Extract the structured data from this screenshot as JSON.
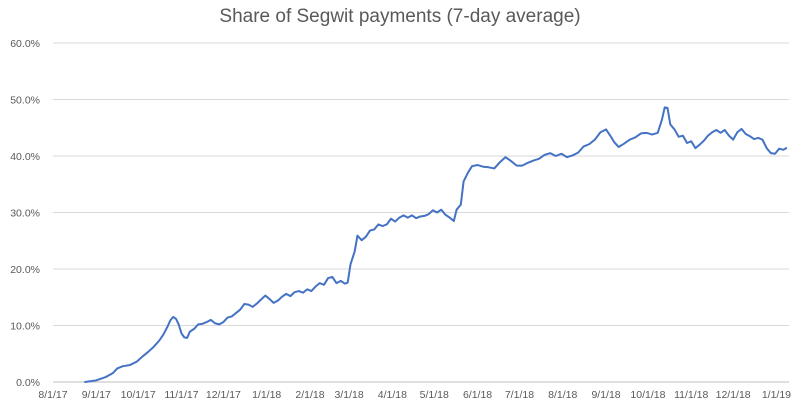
{
  "chart_data": {
    "type": "line",
    "title": "Share of Segwit payments (7-day average)",
    "xlabel": "",
    "ylabel": "",
    "x_axis": {
      "type": "date",
      "range": [
        "2017-08-01",
        "2019-01-10"
      ],
      "tick_labels": [
        "8/1/17",
        "9/1/17",
        "10/1/17",
        "11/1/17",
        "12/1/17",
        "1/1/18",
        "2/1/18",
        "3/1/18",
        "4/1/18",
        "5/1/18",
        "6/1/18",
        "7/1/18",
        "8/1/18",
        "9/1/18",
        "10/1/18",
        "11/1/18",
        "12/1/18",
        "1/1/19"
      ],
      "tick_dates": [
        "2017-08-01",
        "2017-09-01",
        "2017-10-01",
        "2017-11-01",
        "2017-12-01",
        "2018-01-01",
        "2018-02-01",
        "2018-03-01",
        "2018-04-01",
        "2018-05-01",
        "2018-06-01",
        "2018-07-01",
        "2018-08-01",
        "2018-09-01",
        "2018-10-01",
        "2018-11-01",
        "2018-12-01",
        "2019-01-01"
      ]
    },
    "y_axis": {
      "range": [
        0,
        60
      ],
      "unit": "%",
      "tick_values": [
        0,
        10,
        20,
        30,
        40,
        50,
        60
      ],
      "tick_labels": [
        "0.0%",
        "10.0%",
        "20.0%",
        "30.0%",
        "40.0%",
        "50.0%",
        "60.0%"
      ]
    },
    "grid": "horizontal",
    "legend": "none",
    "series": [
      {
        "color": "#4472c4",
        "points": [
          [
            "2017-08-24",
            0.0
          ],
          [
            "2017-09-01",
            0.3
          ],
          [
            "2017-09-08",
            0.9
          ],
          [
            "2017-09-13",
            1.6
          ],
          [
            "2017-09-16",
            2.4
          ],
          [
            "2017-09-20",
            2.8
          ],
          [
            "2017-09-25",
            3.0
          ],
          [
            "2017-09-30",
            3.6
          ],
          [
            "2017-10-04",
            4.5
          ],
          [
            "2017-10-08",
            5.3
          ],
          [
            "2017-10-12",
            6.2
          ],
          [
            "2017-10-16",
            7.3
          ],
          [
            "2017-10-19",
            8.4
          ],
          [
            "2017-10-22",
            9.8
          ],
          [
            "2017-10-24",
            10.9
          ],
          [
            "2017-10-26",
            11.5
          ],
          [
            "2017-10-28",
            11.2
          ],
          [
            "2017-10-30",
            10.2
          ],
          [
            "2017-11-01",
            8.6
          ],
          [
            "2017-11-03",
            7.9
          ],
          [
            "2017-11-05",
            7.8
          ],
          [
            "2017-11-07",
            8.9
          ],
          [
            "2017-11-10",
            9.4
          ],
          [
            "2017-11-13",
            10.2
          ],
          [
            "2017-11-16",
            10.3
          ],
          [
            "2017-11-19",
            10.6
          ],
          [
            "2017-11-22",
            11.0
          ],
          [
            "2017-11-25",
            10.4
          ],
          [
            "2017-11-28",
            10.2
          ],
          [
            "2017-12-01",
            10.6
          ],
          [
            "2017-12-04",
            11.4
          ],
          [
            "2017-12-07",
            11.6
          ],
          [
            "2017-12-10",
            12.2
          ],
          [
            "2017-12-13",
            12.8
          ],
          [
            "2017-12-16",
            13.8
          ],
          [
            "2017-12-19",
            13.7
          ],
          [
            "2017-12-22",
            13.3
          ],
          [
            "2017-12-25",
            13.9
          ],
          [
            "2017-12-28",
            14.6
          ],
          [
            "2017-12-31",
            15.3
          ],
          [
            "2018-01-03",
            14.7
          ],
          [
            "2018-01-06",
            14.0
          ],
          [
            "2018-01-09",
            14.4
          ],
          [
            "2018-01-12",
            15.1
          ],
          [
            "2018-01-15",
            15.6
          ],
          [
            "2018-01-18",
            15.2
          ],
          [
            "2018-01-21",
            15.9
          ],
          [
            "2018-01-24",
            16.1
          ],
          [
            "2018-01-27",
            15.8
          ],
          [
            "2018-01-30",
            16.4
          ],
          [
            "2018-02-02",
            16.1
          ],
          [
            "2018-02-05",
            16.9
          ],
          [
            "2018-02-08",
            17.5
          ],
          [
            "2018-02-11",
            17.2
          ],
          [
            "2018-02-14",
            18.4
          ],
          [
            "2018-02-17",
            18.6
          ],
          [
            "2018-02-20",
            17.5
          ],
          [
            "2018-02-23",
            17.9
          ],
          [
            "2018-02-26",
            17.4
          ],
          [
            "2018-02-28",
            17.6
          ],
          [
            "2018-03-02",
            20.8
          ],
          [
            "2018-03-05",
            23.1
          ],
          [
            "2018-03-07",
            25.9
          ],
          [
            "2018-03-10",
            25.1
          ],
          [
            "2018-03-13",
            25.7
          ],
          [
            "2018-03-16",
            26.8
          ],
          [
            "2018-03-19",
            27.0
          ],
          [
            "2018-03-22",
            27.9
          ],
          [
            "2018-03-25",
            27.6
          ],
          [
            "2018-03-28",
            27.9
          ],
          [
            "2018-03-31",
            28.9
          ],
          [
            "2018-04-03",
            28.4
          ],
          [
            "2018-04-06",
            29.1
          ],
          [
            "2018-04-09",
            29.5
          ],
          [
            "2018-04-12",
            29.1
          ],
          [
            "2018-04-15",
            29.5
          ],
          [
            "2018-04-18",
            29.0
          ],
          [
            "2018-04-21",
            29.3
          ],
          [
            "2018-04-24",
            29.4
          ],
          [
            "2018-04-27",
            29.7
          ],
          [
            "2018-04-30",
            30.4
          ],
          [
            "2018-05-03",
            30.0
          ],
          [
            "2018-05-06",
            30.5
          ],
          [
            "2018-05-09",
            29.6
          ],
          [
            "2018-05-12",
            29.1
          ],
          [
            "2018-05-15",
            28.5
          ],
          [
            "2018-05-17",
            30.5
          ],
          [
            "2018-05-20",
            31.4
          ],
          [
            "2018-05-22",
            35.5
          ],
          [
            "2018-05-25",
            37.0
          ],
          [
            "2018-05-28",
            38.2
          ],
          [
            "2018-06-01",
            38.4
          ],
          [
            "2018-06-05",
            38.1
          ],
          [
            "2018-06-09",
            38.0
          ],
          [
            "2018-06-13",
            37.8
          ],
          [
            "2018-06-17",
            38.9
          ],
          [
            "2018-06-21",
            39.8
          ],
          [
            "2018-06-25",
            39.1
          ],
          [
            "2018-06-29",
            38.3
          ],
          [
            "2018-07-03",
            38.3
          ],
          [
            "2018-07-07",
            38.8
          ],
          [
            "2018-07-11",
            39.2
          ],
          [
            "2018-07-15",
            39.5
          ],
          [
            "2018-07-19",
            40.2
          ],
          [
            "2018-07-23",
            40.5
          ],
          [
            "2018-07-27",
            40.0
          ],
          [
            "2018-07-31",
            40.4
          ],
          [
            "2018-08-04",
            39.8
          ],
          [
            "2018-08-08",
            40.1
          ],
          [
            "2018-08-12",
            40.6
          ],
          [
            "2018-08-16",
            41.7
          ],
          [
            "2018-08-20",
            42.1
          ],
          [
            "2018-08-24",
            42.9
          ],
          [
            "2018-08-28",
            44.2
          ],
          [
            "2018-09-01",
            44.7
          ],
          [
            "2018-09-04",
            43.6
          ],
          [
            "2018-09-07",
            42.4
          ],
          [
            "2018-09-10",
            41.6
          ],
          [
            "2018-09-14",
            42.2
          ],
          [
            "2018-09-18",
            42.9
          ],
          [
            "2018-09-22",
            43.3
          ],
          [
            "2018-09-26",
            44.0
          ],
          [
            "2018-09-30",
            44.1
          ],
          [
            "2018-10-04",
            43.8
          ],
          [
            "2018-10-08",
            44.1
          ],
          [
            "2018-10-11",
            46.4
          ],
          [
            "2018-10-13",
            48.6
          ],
          [
            "2018-10-15",
            48.5
          ],
          [
            "2018-10-17",
            45.6
          ],
          [
            "2018-10-20",
            44.7
          ],
          [
            "2018-10-23",
            43.4
          ],
          [
            "2018-10-26",
            43.6
          ],
          [
            "2018-10-29",
            42.3
          ],
          [
            "2018-11-01",
            42.6
          ],
          [
            "2018-11-04",
            41.4
          ],
          [
            "2018-11-07",
            42.0
          ],
          [
            "2018-11-10",
            42.7
          ],
          [
            "2018-11-13",
            43.6
          ],
          [
            "2018-11-16",
            44.2
          ],
          [
            "2018-11-19",
            44.6
          ],
          [
            "2018-11-22",
            44.1
          ],
          [
            "2018-11-25",
            44.6
          ],
          [
            "2018-11-28",
            43.6
          ],
          [
            "2018-12-01",
            42.9
          ],
          [
            "2018-12-04",
            44.2
          ],
          [
            "2018-12-07",
            44.8
          ],
          [
            "2018-12-10",
            43.9
          ],
          [
            "2018-12-13",
            43.5
          ],
          [
            "2018-12-16",
            43.0
          ],
          [
            "2018-12-19",
            43.2
          ],
          [
            "2018-12-22",
            42.9
          ],
          [
            "2018-12-25",
            41.4
          ],
          [
            "2018-12-28",
            40.5
          ],
          [
            "2018-12-31",
            40.4
          ],
          [
            "2019-01-03",
            41.3
          ],
          [
            "2019-01-06",
            41.1
          ],
          [
            "2019-01-08",
            41.4
          ]
        ]
      }
    ]
  }
}
